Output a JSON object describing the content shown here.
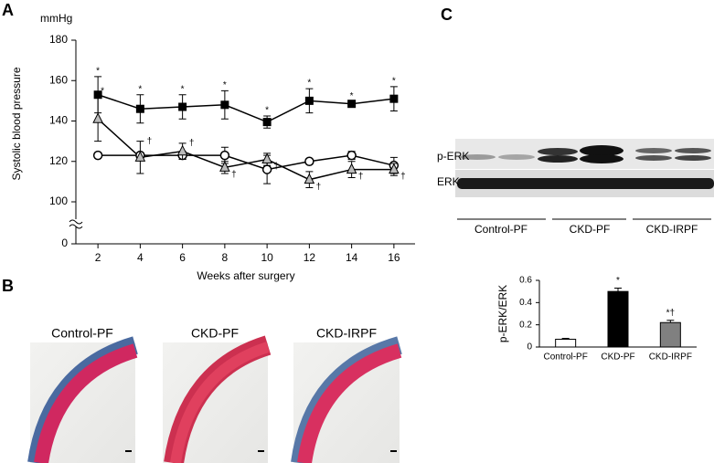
{
  "panel_labels": [
    "A",
    "B",
    "C"
  ],
  "chart_data": [
    {
      "type": "line",
      "y_unit": "mmHg",
      "ylabel": "Systolic blood pressure",
      "xlabel": "Weeks after surgery",
      "x": [
        2,
        4,
        6,
        8,
        10,
        12,
        14,
        16
      ],
      "xlim": [
        1,
        17
      ],
      "xticks": [
        2,
        4,
        6,
        8,
        10,
        12,
        14,
        16
      ],
      "ylim": [
        0,
        180
      ],
      "yticks": [
        0,
        100,
        120,
        140,
        160,
        180
      ],
      "axis_break": [
        0,
        100
      ],
      "series": [
        {
          "marker": "square",
          "color": "#000000",
          "values": [
            153,
            146,
            147,
            148,
            139.5,
            150,
            148.5,
            151
          ],
          "errors": [
            9,
            7,
            6,
            7,
            3,
            6,
            1,
            6
          ],
          "annotations": [
            "*",
            "*",
            "*",
            "*",
            "*",
            "*",
            "*",
            "*"
          ]
        },
        {
          "marker": "circle",
          "color": "#000000",
          "values": [
            123,
            123,
            123,
            123,
            116,
            120,
            123,
            118
          ],
          "errors": [
            0.5,
            0.5,
            2,
            4,
            7,
            1,
            2,
            4
          ]
        },
        {
          "marker": "triangle",
          "color": "#000000",
          "values": [
            141,
            122,
            125,
            117,
            121,
            111,
            116,
            116
          ],
          "errors": [
            11,
            8,
            4,
            3,
            3,
            4,
            4,
            3
          ],
          "annotations": [
            "*",
            "†",
            "†",
            "†",
            "†",
            "†",
            "†",
            "†"
          ]
        }
      ]
    },
    {
      "type": "bar",
      "ylabel": "p-ERK/ERK",
      "categories": [
        "Control-PF",
        "CKD-PF",
        "CKD-IRPF"
      ],
      "values": [
        0.07,
        0.5,
        0.22
      ],
      "errors": [
        0.008,
        0.03,
        0.02
      ],
      "colors": [
        "#ffffff",
        "#000000",
        "#808080"
      ],
      "annotations": [
        null,
        "*",
        "*†"
      ],
      "ylim": [
        0,
        0.6
      ],
      "yticks": [
        0,
        0.2,
        0.4,
        0.6
      ]
    }
  ],
  "histology": {
    "labels": [
      "Control-PF",
      "CKD-PF",
      "CKD-IRPF"
    ]
  },
  "blot": {
    "rows": [
      "p-ERK",
      "ERK"
    ],
    "groups": [
      "Control-PF",
      "CKD-PF",
      "CKD-IRPF"
    ]
  }
}
